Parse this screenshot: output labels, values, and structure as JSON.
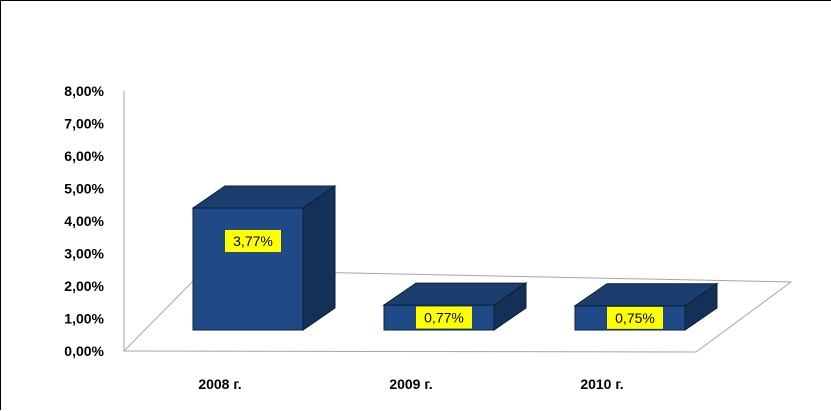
{
  "chart_data": {
    "type": "bar",
    "categories": [
      "2008 г.",
      "2009 г.",
      "2010 г."
    ],
    "values": [
      3.77,
      0.77,
      0.75
    ],
    "data_labels": [
      "3,77%",
      "0,77%",
      "0,75%"
    ],
    "y_ticks": [
      "0,00%",
      "1,00%",
      "2,00%",
      "3,00%",
      "4,00%",
      "5,00%",
      "6,00%",
      "7,00%",
      "8,00%"
    ],
    "ylim": [
      0,
      8
    ],
    "grid": false,
    "legend": "none",
    "style": "3d-column",
    "colors": {
      "bar_front": "#1f4a86",
      "bar_top": "#1b3e6e",
      "bar_side": "#153056",
      "bar_outline": "#0d1f3a",
      "label_fill": "#ffff00",
      "axis": "#a6a6a6"
    }
  }
}
